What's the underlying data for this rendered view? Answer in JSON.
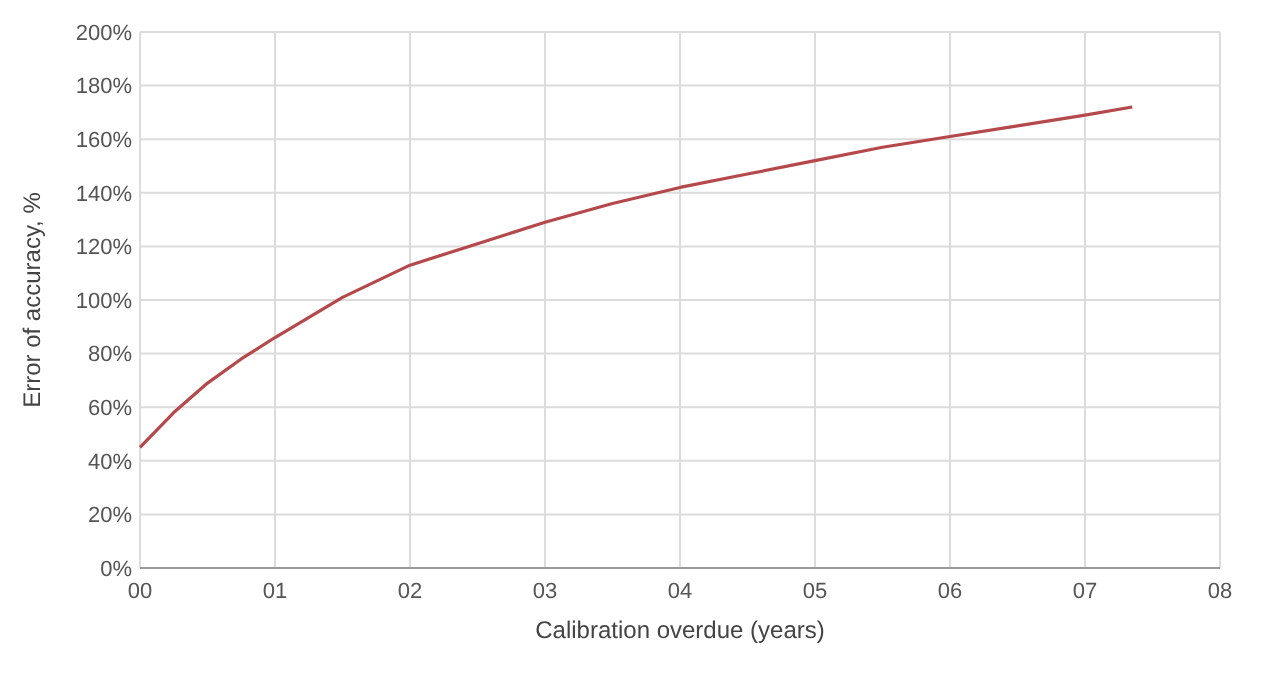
{
  "chart_data": {
    "type": "line",
    "xlabel": "Calibration overdue (years)",
    "ylabel": "Error of accuracy, %",
    "x": [
      0,
      0.25,
      0.5,
      0.75,
      1,
      1.5,
      2,
      2.5,
      3,
      3.5,
      4,
      4.5,
      5,
      5.5,
      6,
      6.5,
      7,
      7.35
    ],
    "series": [
      {
        "color": "#b5484a",
        "values": [
          45,
          58,
          69,
          78,
          86,
          101,
          113,
          121,
          129,
          136,
          142,
          147,
          152,
          157,
          161,
          165,
          169,
          172
        ]
      }
    ],
    "xlim": [
      0,
      8
    ],
    "xticks": [
      {
        "value": 0,
        "label": "00"
      },
      {
        "value": 1,
        "label": "01"
      },
      {
        "value": 2,
        "label": "02"
      },
      {
        "value": 3,
        "label": "03"
      },
      {
        "value": 4,
        "label": "04"
      },
      {
        "value": 5,
        "label": "05"
      },
      {
        "value": 6,
        "label": "06"
      },
      {
        "value": 7,
        "label": "07"
      },
      {
        "value": 8,
        "label": "08"
      }
    ],
    "ylim": [
      0,
      200
    ],
    "yticks": [
      {
        "value": 0,
        "label": "0%"
      },
      {
        "value": 20,
        "label": "20%"
      },
      {
        "value": 40,
        "label": "40%"
      },
      {
        "value": 60,
        "label": "60%"
      },
      {
        "value": 80,
        "label": "80%"
      },
      {
        "value": 100,
        "label": "100%"
      },
      {
        "value": 120,
        "label": "120%"
      },
      {
        "value": 140,
        "label": "140%"
      },
      {
        "value": 160,
        "label": "160%"
      },
      {
        "value": 180,
        "label": "180%"
      },
      {
        "value": 200,
        "label": "200%"
      }
    ],
    "grid": true,
    "marker": "none",
    "line_style": "solid"
  }
}
